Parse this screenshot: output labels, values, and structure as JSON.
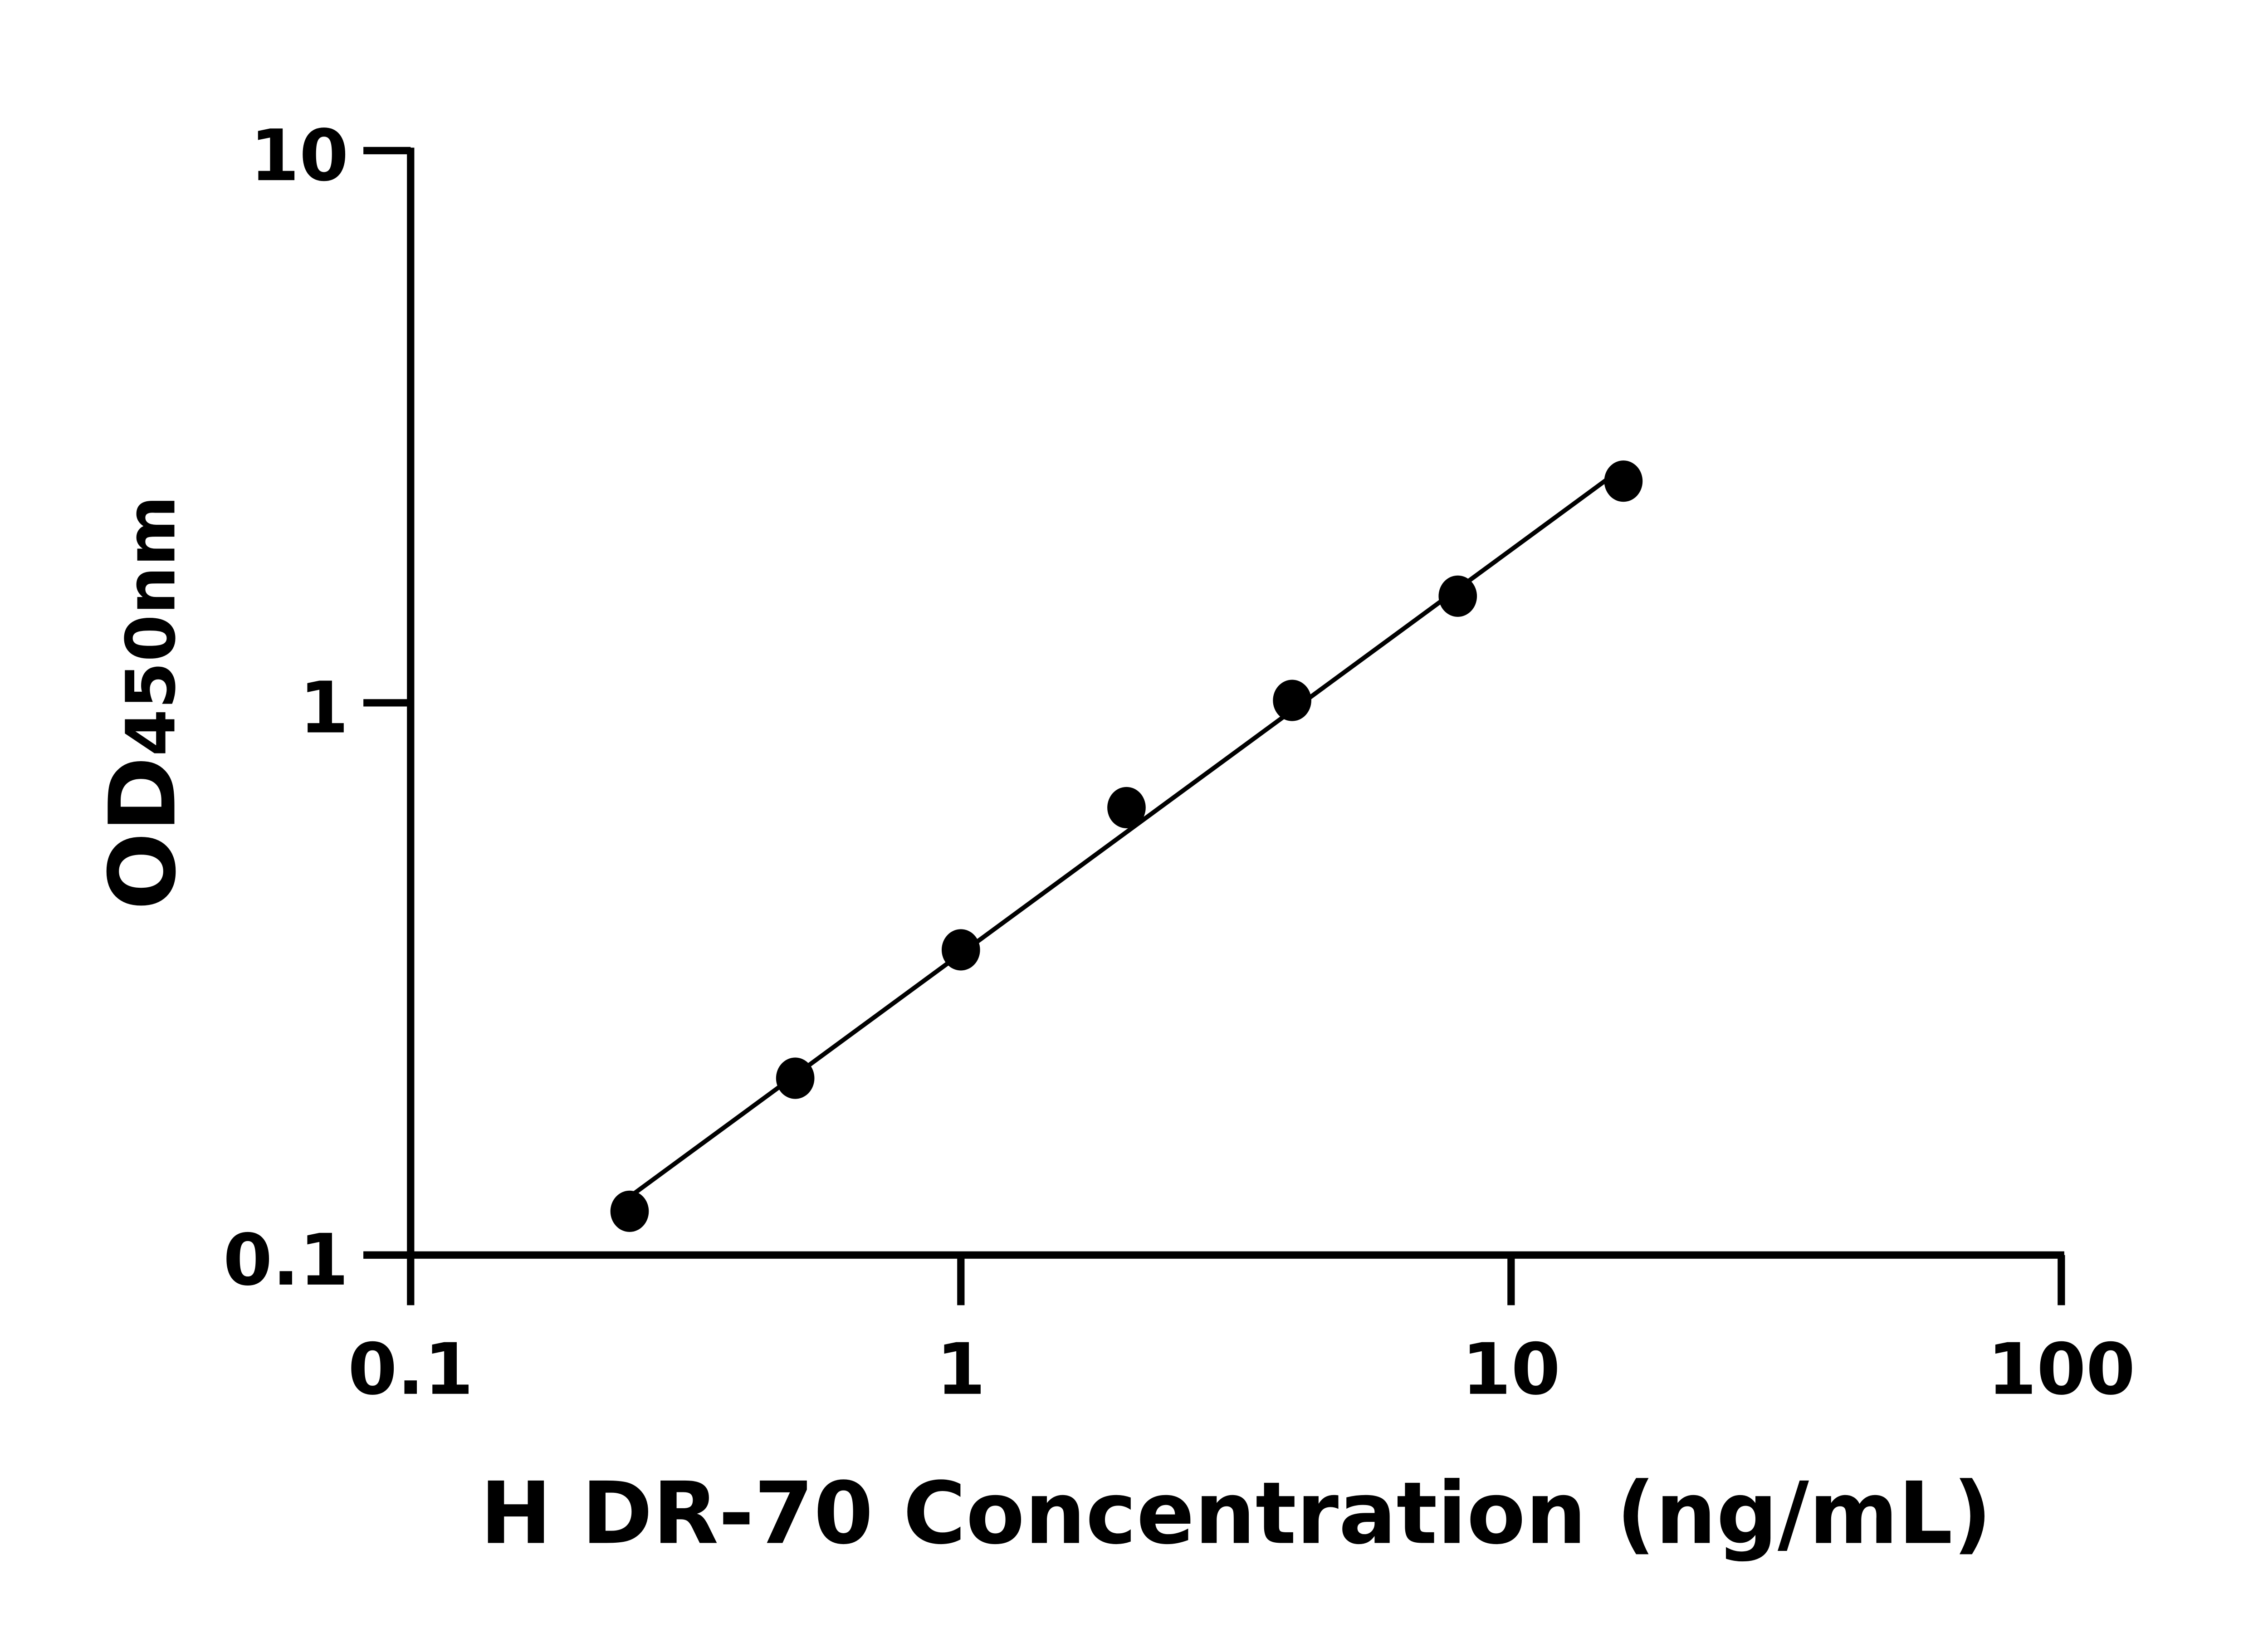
{
  "chart_data": {
    "type": "scatter",
    "title": "",
    "xlabel": "H DR-70 Concentration (ng/mL)",
    "ylabel_main": "OD",
    "ylabel_sub": "450nm",
    "x_scale": "log",
    "y_scale": "log",
    "xlim": [
      0.1,
      100
    ],
    "ylim": [
      0.1,
      10
    ],
    "x_ticks": [
      "0.1",
      "1",
      "10",
      "100"
    ],
    "y_ticks": [
      "0.1",
      "1",
      "10"
    ],
    "grid": false,
    "fit_line": true,
    "color": "#000000",
    "x": [
      0.25,
      0.5,
      1,
      2,
      4,
      8,
      16
    ],
    "y": [
      0.12,
      0.209,
      0.357,
      0.646,
      1.01,
      1.56,
      2.52
    ]
  }
}
